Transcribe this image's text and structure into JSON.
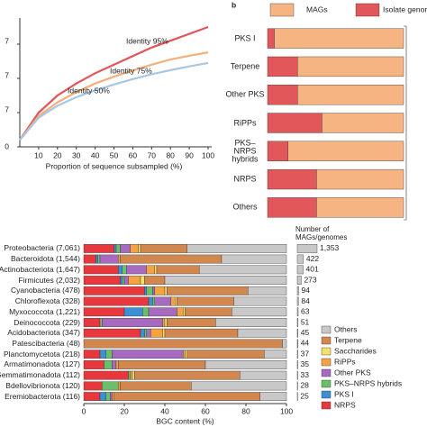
{
  "chart_data": [
    {
      "type": "line",
      "xlabel": "Proportion of sequence subsampled (%)",
      "x": [
        0,
        10,
        20,
        30,
        40,
        50,
        60,
        70,
        80,
        90,
        100
      ],
      "xlim": [
        0,
        100
      ],
      "xticks": [
        10,
        20,
        30,
        40,
        50,
        60,
        70,
        80,
        90,
        100
      ],
      "ylim": [
        0,
        3.5
      ],
      "yticks": [
        0,
        {
          "value": 1,
          "label": "7"
        },
        {
          "value": 2,
          "label": "7"
        },
        {
          "value": 3,
          "label": "7"
        }
      ],
      "series": [
        {
          "name": "Identity 95%",
          "color": "#e0545a",
          "values": [
            0.2,
            1.0,
            1.5,
            1.85,
            2.15,
            2.4,
            2.65,
            2.9,
            3.1,
            3.3,
            3.5
          ]
        },
        {
          "name": "Identity 75%",
          "color": "#f4b07a",
          "values": [
            0.2,
            0.9,
            1.3,
            1.6,
            1.85,
            2.05,
            2.23,
            2.4,
            2.55,
            2.66,
            2.76
          ]
        },
        {
          "name": "Identity 50%",
          "color": "#a9c6e2",
          "values": [
            0.2,
            0.85,
            1.2,
            1.45,
            1.65,
            1.82,
            1.98,
            2.12,
            2.24,
            2.35,
            2.45
          ]
        }
      ]
    },
    {
      "type": "stacked_bar",
      "panel": "b",
      "categories": [
        "PKS I",
        "Terpene",
        "Other PKS",
        "RiPPs",
        "PKS–NRPS hybrids",
        "NRPS",
        "Others"
      ],
      "series": [
        {
          "name": "Isolate genomes",
          "color": "#e1575a",
          "values": [
            5,
            22,
            22,
            40,
            15,
            36,
            36
          ]
        },
        {
          "name": "MAGs",
          "color": "#f7b483",
          "values": [
            95,
            78,
            78,
            60,
            85,
            64,
            64
          ]
        }
      ]
    },
    {
      "type": "stacked_bar",
      "xlabel": "BGC content (%)",
      "xlim": [
        0,
        100
      ],
      "xticks": [
        0,
        20,
        40,
        60,
        80,
        100
      ],
      "categories": [
        "Proteobacteria (7,061)",
        "Bacteroidota (1,544)",
        "Actinobacteriota (1,647)",
        "Firmicutes (2,032)",
        "Cyanobacteria (478)",
        "Chloroflexota (328)",
        "Myxococcota (1,221)",
        "Deinococcota (229)",
        "Acidobacteriota (347)",
        "Patescibacteria (48)",
        "Planctomycetota (218)",
        "Armatimonadota (127)",
        "Gemmatimonadota (112)",
        "Bdellovibrionota (120)",
        "Eremiobacterota (116)"
      ],
      "series": [
        {
          "name": "NRPS",
          "color": "#e8383d",
          "values": [
            15,
            6,
            17,
            18,
            30,
            32,
            20,
            8,
            28,
            0,
            8,
            10,
            22,
            9,
            8
          ]
        },
        {
          "name": "PKS I",
          "color": "#3b8fd4",
          "values": [
            1,
            1,
            2,
            1,
            1,
            2,
            9,
            0,
            2,
            0,
            3,
            0,
            0,
            0,
            3
          ]
        },
        {
          "name": "PKS–NRPS hybrids",
          "color": "#6abf69",
          "values": [
            2,
            1,
            2,
            1,
            3,
            1,
            3,
            1,
            1,
            0,
            3,
            4,
            1,
            8,
            2
          ]
        },
        {
          "name": "Other PKS",
          "color": "#a86ac0",
          "values": [
            5,
            9,
            10,
            2,
            1,
            8,
            14,
            30,
            2,
            0,
            35,
            2,
            0,
            0,
            1
          ]
        },
        {
          "name": "RiPPs",
          "color": "#f4a340",
          "values": [
            4,
            1,
            4,
            6,
            5,
            2,
            3,
            1,
            6,
            0,
            1,
            1,
            1,
            1,
            1
          ]
        },
        {
          "name": "Saccharides",
          "color": "#f2e26a",
          "values": [
            1,
            0,
            1,
            2,
            1,
            1,
            1,
            1,
            1,
            0,
            1,
            0,
            1,
            0,
            0
          ]
        },
        {
          "name": "Terpene",
          "color": "#d2874f",
          "values": [
            23,
            50,
            21,
            10,
            40,
            28,
            23,
            24,
            36,
            98,
            38,
            43,
            52,
            35,
            72
          ]
        },
        {
          "name": "Others",
          "color": "#c8c8c8",
          "values": [
            49,
            32,
            43,
            60,
            19,
            26,
            27,
            35,
            24,
            2,
            11,
            40,
            23,
            47,
            13
          ]
        }
      ]
    },
    {
      "type": "bar",
      "title": "Number of MAGs/genomes",
      "color": "#c8c8c8",
      "values": [
        1353,
        422,
        401,
        273,
        94,
        84,
        63,
        51,
        45,
        44,
        37,
        35,
        33,
        28,
        25
      ],
      "value_labels": [
        "1,353",
        "422",
        "401",
        "273",
        "94",
        "84",
        "63",
        "51",
        "45",
        "44",
        "37",
        "35",
        "33",
        "28",
        "25"
      ]
    }
  ]
}
